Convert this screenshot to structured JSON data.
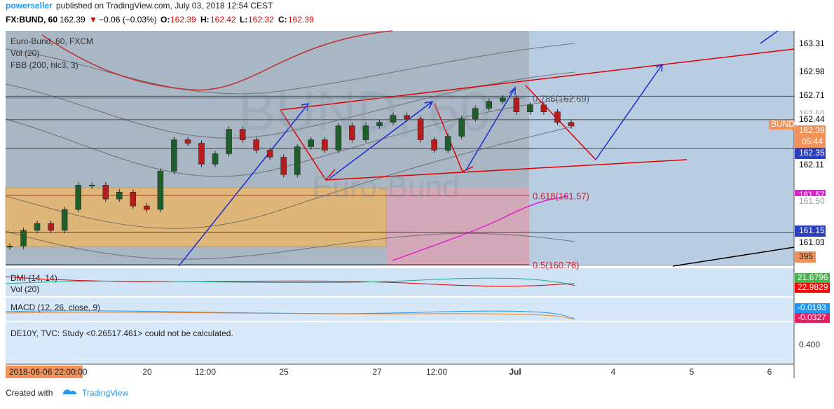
{
  "header": {
    "author": "powerseller",
    "published": "published on TradingView.com, July 03, 2018 12:54 CEST"
  },
  "quote": {
    "symbol": "FX:BUND, 60",
    "last": "162.39",
    "arrow": "▼",
    "change": "−0.06 (−0.03%)",
    "o_label": "O:",
    "o": "162.39",
    "h_label": "H:",
    "h": "162.42",
    "l_label": "L:",
    "l": "162.32",
    "c_label": "C:",
    "c": "162.39"
  },
  "legend": [
    "Euro-Bund, 60, FXCM",
    "Vol (20)",
    "FBB (200, hlc3, 3)"
  ],
  "watermark": {
    "symbol": "BUND, 60",
    "name": "Euro-Bund"
  },
  "chart": {
    "type": "candlestick",
    "ylim": [
      160.76,
      163.46
    ],
    "up_color": "#1e5e2a",
    "down_color": "#b71c1c",
    "close": [
      160.99,
      161.17,
      161.25,
      161.17,
      161.41,
      161.69,
      161.69,
      161.53,
      161.61,
      161.45,
      161.41,
      161.85,
      162.21,
      162.17,
      161.93,
      162.05,
      162.33,
      162.21,
      162.09,
      162.01,
      161.81,
      162.13,
      162.21,
      162.09,
      162.37,
      162.21,
      162.37,
      162.41,
      162.49,
      162.45,
      162.21,
      162.09,
      162.25,
      162.45,
      162.57,
      162.65,
      162.69,
      162.53,
      162.61,
      162.53,
      162.41,
      162.37
    ],
    "price_scale": [
      {
        "value": 163.31,
        "label": "163.31",
        "bg": "#ffffff",
        "fg": "#000000",
        "line": false
      },
      {
        "value": 162.98,
        "label": "162.98",
        "bg": "#ffffff",
        "fg": "#000000",
        "line": false
      },
      {
        "value": 162.71,
        "label": "162.71",
        "bg": "#ffffff",
        "fg": "#000000",
        "line": true
      },
      {
        "value": 162.5,
        "label": "162.50",
        "bg": "#ffffff",
        "fg": "#999999",
        "line": false
      },
      {
        "value": 162.44,
        "label": "162.44",
        "bg": "#ffffff",
        "fg": "#000000",
        "line": true
      },
      {
        "value": 162.39,
        "label": "162.39",
        "bg": "#f0925a",
        "fg": "#ffffff",
        "line": false
      },
      {
        "value": 162.35,
        "label": "162.35",
        "bg": "#2c3fbf",
        "fg": "#ffffff",
        "line": false
      },
      {
        "value": 162.11,
        "label": "162.11",
        "bg": "#ffffff",
        "fg": "#000000",
        "line": true
      },
      {
        "value": 161.57,
        "label": "161.57",
        "bg": "#e020d0",
        "fg": "#ffffff",
        "line": false
      },
      {
        "value": 161.5,
        "label": "161.50",
        "bg": "#ffffff",
        "fg": "#999999",
        "line": false
      },
      {
        "value": 161.15,
        "label": "161.15",
        "bg": "#2c3fbf",
        "fg": "#ffffff",
        "line": true
      },
      {
        "value": 161.03,
        "label": "161.03",
        "bg": "#ffffff",
        "fg": "#000000",
        "line": false
      }
    ],
    "fib": [
      {
        "value": 162.69,
        "label": "0.786(162.69)"
      },
      {
        "value": 161.57,
        "label": "0.618(161.57)"
      },
      {
        "value": 160.78,
        "label": "0.5(160.78)"
      }
    ],
    "tag": "BUND"
  },
  "countdown": "05:44",
  "volume_label": "395",
  "dmi": {
    "title": "DMI (14, 14)",
    "vol": "Vol (20)",
    "labels": [
      {
        "label": "21.6796",
        "bg": "#4caf50"
      },
      {
        "label": "22.9829",
        "bg": "#ff0000"
      }
    ]
  },
  "macd": {
    "title": "MACD (12, 26, close, 9)",
    "labels": [
      {
        "label": "-0.0193",
        "bg": "#2196f3"
      },
      {
        "label": "-0.0327",
        "bg": "#e91e63"
      }
    ]
  },
  "de10y": {
    "message": "DE10Y, TVC: Study <0.26517.461> could not be calculated.",
    "scale": "0.400"
  },
  "time_axis": {
    "start": "2018-06-06 22:00:00",
    "labels": [
      "20",
      "12:00",
      "25",
      "27",
      "12:00",
      "Jul",
      "4",
      "5",
      "6"
    ]
  },
  "footer": {
    "created": "Created with",
    "brand": "TradingView"
  }
}
